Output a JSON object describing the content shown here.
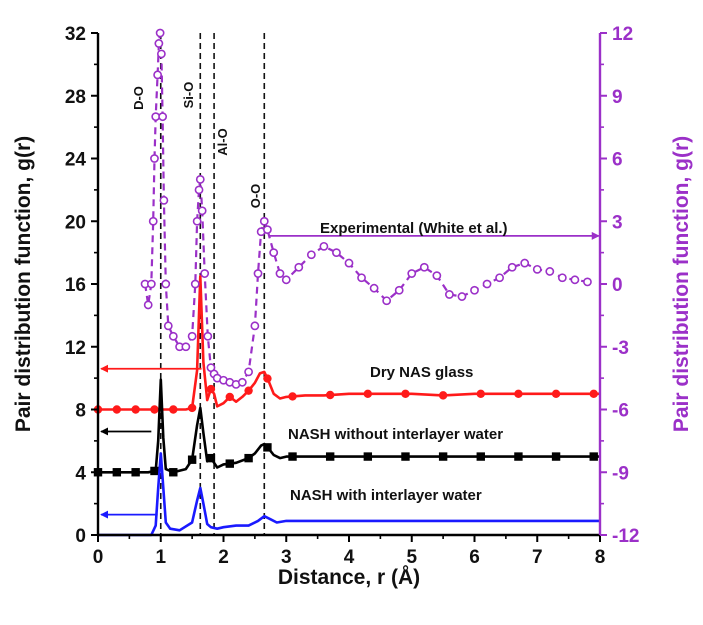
{
  "chart_data": {
    "type": "line",
    "xlabel": "Distance, r (Å)",
    "ylabel": "Pair distribution function, g(r)",
    "y2label": "Pair distribution function, g(r)",
    "xlim": [
      0,
      8
    ],
    "ylim": [
      0,
      32
    ],
    "y2lim": [
      -12,
      12
    ],
    "xticks": [
      "0",
      "1",
      "2",
      "3",
      "4",
      "5",
      "6",
      "7",
      "8"
    ],
    "yticks": [
      "0",
      "4",
      "8",
      "12",
      "16",
      "20",
      "24",
      "28",
      "32"
    ],
    "y2ticks": [
      "-12",
      "-9",
      "-6",
      "-3",
      "0",
      "3",
      "6",
      "9",
      "12"
    ],
    "vlines": [
      {
        "label": "D-O",
        "x": 1.0
      },
      {
        "label": "Si-O",
        "x": 1.63
      },
      {
        "label": "Al-O",
        "x": 1.85
      },
      {
        "label": "O-O",
        "x": 2.65
      }
    ],
    "annotations": {
      "experimental": "Experimental (White et al.)",
      "dry": "Dry NAS glass",
      "nash_without": "NASH without interlayer water",
      "nash_with": "NASH with interlayer water"
    },
    "series": [
      {
        "name": "Dry NAS glass",
        "axis": "left",
        "color": "#ff1a1a",
        "x": [
          0,
          1.0,
          1.2,
          1.4,
          1.5,
          1.58,
          1.63,
          1.68,
          1.74,
          1.8,
          1.85,
          1.9,
          2.0,
          2.1,
          2.2,
          2.3,
          2.4,
          2.5,
          2.58,
          2.65,
          2.72,
          2.8,
          2.9,
          3.0,
          3.3,
          3.6,
          4.0,
          4.5,
          5.0,
          5.5,
          6.0,
          6.5,
          7.0,
          7.5,
          8.0
        ],
        "y": [
          8.0,
          8.0,
          8.0,
          8.0,
          8.1,
          10.5,
          16.5,
          11.0,
          8.6,
          9.3,
          9.0,
          8.2,
          8.4,
          8.8,
          8.5,
          8.8,
          9.2,
          9.7,
          10.3,
          10.4,
          9.8,
          9.0,
          8.7,
          8.8,
          8.9,
          8.9,
          9.0,
          9.0,
          9.0,
          8.9,
          9.0,
          9.0,
          9.0,
          9.0,
          9.0
        ],
        "markers": [
          0,
          0.3,
          0.6,
          0.9,
          1.2,
          1.5,
          1.8,
          2.1,
          2.4,
          2.7,
          3.1,
          3.7,
          4.3,
          4.9,
          5.5,
          6.1,
          6.7,
          7.3,
          7.9
        ]
      },
      {
        "name": "NASH without interlayer water",
        "axis": "left",
        "color": "#000000",
        "x": [
          0,
          0.8,
          0.92,
          0.96,
          1.0,
          1.04,
          1.08,
          1.2,
          1.4,
          1.5,
          1.58,
          1.63,
          1.68,
          1.74,
          1.8,
          1.85,
          1.9,
          2.0,
          2.2,
          2.4,
          2.5,
          2.6,
          2.65,
          2.72,
          2.8,
          2.9,
          3.0,
          3.5,
          4.0,
          5.0,
          6.0,
          7.0,
          8.0
        ],
        "y": [
          4.0,
          4.0,
          4.1,
          6.0,
          9.9,
          6.2,
          4.2,
          4.0,
          4.2,
          4.8,
          7.0,
          8.1,
          6.5,
          4.7,
          4.9,
          4.6,
          4.3,
          4.5,
          4.6,
          4.9,
          5.2,
          5.7,
          5.8,
          5.5,
          5.1,
          4.9,
          5.0,
          5.0,
          5.0,
          5.0,
          5.0,
          5.0,
          5.0
        ],
        "markers": [
          0,
          0.3,
          0.6,
          0.9,
          1.2,
          1.5,
          1.8,
          2.1,
          2.4,
          2.7,
          3.1,
          3.7,
          4.3,
          4.9,
          5.5,
          6.1,
          6.7,
          7.3,
          7.9
        ]
      },
      {
        "name": "NASH with interlayer water",
        "axis": "left",
        "color": "#1a1aff",
        "x": [
          0,
          0.85,
          0.92,
          0.96,
          1.0,
          1.04,
          1.08,
          1.15,
          1.3,
          1.5,
          1.58,
          1.63,
          1.68,
          1.74,
          1.8,
          1.9,
          2.0,
          2.2,
          2.4,
          2.55,
          2.65,
          2.75,
          2.85,
          3.0,
          3.5,
          4.0,
          5.0,
          6.0,
          7.0,
          8.0
        ],
        "y": [
          0,
          0,
          0.6,
          3.0,
          5.2,
          3.0,
          0.8,
          0.4,
          0.3,
          0.8,
          2.2,
          3.0,
          2.0,
          0.7,
          0.5,
          0.4,
          0.5,
          0.6,
          0.6,
          0.9,
          1.2,
          1.0,
          0.8,
          0.9,
          0.9,
          0.9,
          0.9,
          0.9,
          0.9,
          0.9
        ],
        "markers": []
      },
      {
        "name": "Experimental (White et al.)",
        "axis": "right",
        "color": "#9b30c8",
        "x": [
          0.75,
          0.8,
          0.85,
          0.88,
          0.9,
          0.92,
          0.95,
          0.97,
          0.99,
          1.01,
          1.03,
          1.05,
          1.08,
          1.12,
          1.2,
          1.3,
          1.4,
          1.5,
          1.55,
          1.58,
          1.61,
          1.63,
          1.66,
          1.7,
          1.75,
          1.8,
          1.85,
          1.9,
          2.0,
          2.1,
          2.2,
          2.3,
          2.4,
          2.5,
          2.55,
          2.6,
          2.65,
          2.7,
          2.8,
          2.9,
          3.0,
          3.2,
          3.4,
          3.6,
          3.8,
          4.0,
          4.2,
          4.4,
          4.6,
          4.8,
          5.0,
          5.2,
          5.4,
          5.6,
          5.8,
          6.0,
          6.2,
          6.4,
          6.6,
          6.8,
          7.0,
          7.2,
          7.4,
          7.6,
          7.8
        ],
        "y": [
          0,
          -1.0,
          0.0,
          3.0,
          6.0,
          8.0,
          10.0,
          11.5,
          12.0,
          11.0,
          8.0,
          4.0,
          0.0,
          -2.0,
          -2.5,
          -3.0,
          -3.0,
          -2.5,
          0.0,
          3.0,
          4.5,
          5.0,
          3.5,
          0.5,
          -2.5,
          -4.0,
          -4.3,
          -4.5,
          -4.6,
          -4.7,
          -4.8,
          -4.7,
          -4.2,
          -2.0,
          0.5,
          2.5,
          3.0,
          2.6,
          1.5,
          0.5,
          0.2,
          0.8,
          1.4,
          1.8,
          1.5,
          1.0,
          0.3,
          -0.2,
          -0.8,
          -0.3,
          0.5,
          0.8,
          0.4,
          -0.5,
          -0.6,
          -0.3,
          0.0,
          0.3,
          0.8,
          1.0,
          0.7,
          0.6,
          0.3,
          0.2,
          0.1
        ],
        "markers": []
      }
    ]
  }
}
